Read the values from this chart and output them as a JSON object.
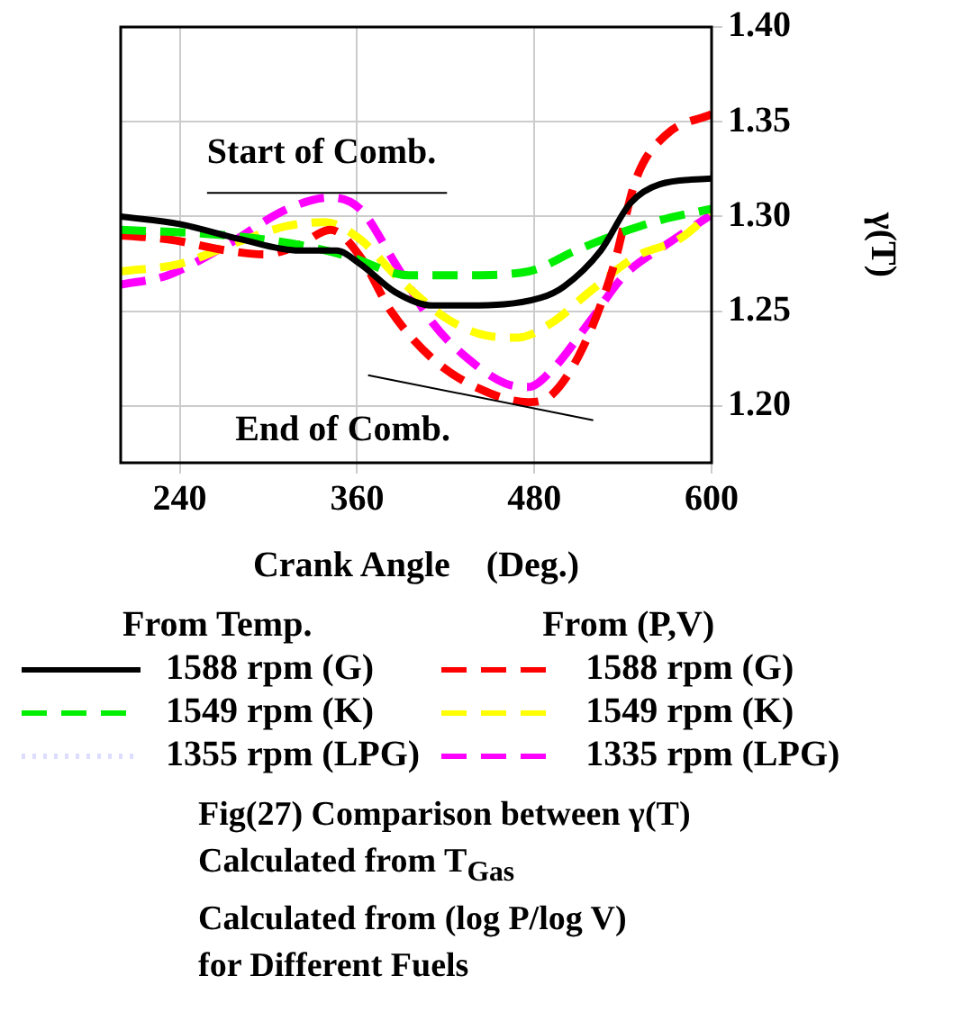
{
  "chart_data": {
    "type": "line",
    "title": "Fig(27) Comparison between γ(T)\nCalculated from T$_{Gas}$\nCalculated from (log P/log V)\nfor Different Fuels",
    "xlabel": "Crank Angle    (Deg.)",
    "ylabel": "γ(T)",
    "legend_title": "From Temp.",
    "xlim": [
      200,
      600
    ],
    "xticks": [
      240,
      360,
      480,
      600
    ],
    "ylim": [
      1.17,
      1.4
    ],
    "yticks": [
      {
        "value": 1.2,
        "label": "1.20"
      },
      {
        "value": 1.25,
        "label": "1.25"
      },
      {
        "value": 1.3,
        "label": "1.30"
      },
      {
        "value": 1.35,
        "label": "1.35"
      },
      {
        "value": 1.4,
        "label": "1.40"
      }
    ],
    "grid": true,
    "legend": "bottom",
    "marker": "none",
    "annotations": [
      "Start of Comb.",
      {
        "text": "End of Comb.",
        "x": 476,
        "y": 1.202
      },
      "From (P,V)"
    ],
    "series": [
      {
        "name": "1588 rpm (G)",
        "color": "#000000",
        "line_style": "solid",
        "x": [
          200,
          240,
          281,
          321,
          346,
          362,
          386,
          411,
          435,
          484,
          500,
          525,
          545,
          565,
          600
        ],
        "values": [
          1.3,
          1.296,
          1.288,
          1.282,
          1.282,
          1.275,
          1.26,
          1.253,
          1.253,
          1.257,
          1.263,
          1.282,
          1.307,
          1.317,
          1.32
        ]
      },
      {
        "name": "1549 rpm (K)",
        "color": "#00ee00",
        "line_style": "dashed",
        "x": [
          200,
          272,
          321,
          354,
          395,
          435,
          476,
          508,
          537,
          565,
          600
        ],
        "values": [
          1.293,
          1.29,
          1.285,
          1.279,
          1.269,
          1.269,
          1.271,
          1.282,
          1.291,
          1.298,
          1.304
        ]
      },
      {
        "name": "1355 rpm (LPG)",
        "color": "#ddddff",
        "line_style": "dotted"
      },
      {
        "name": "1588 rpm (G)",
        "color": "#ff0000",
        "line_style": "dashed",
        "x": [
          200,
          232,
          272,
          297,
          321,
          342,
          362,
          383,
          411,
          443,
          476,
          492,
          513,
          533,
          549,
          569,
          600
        ],
        "values": [
          1.29,
          1.288,
          1.282,
          1.28,
          1.285,
          1.293,
          1.279,
          1.25,
          1.225,
          1.209,
          1.202,
          1.206,
          1.231,
          1.272,
          1.32,
          1.343,
          1.354
        ]
      },
      {
        "name": "1549 rpm (K)",
        "color": "#ffff00",
        "line_style": "dashed",
        "x": [
          200,
          240,
          281,
          313,
          338,
          362,
          386,
          419,
          443,
          468,
          492,
          517,
          549,
          578,
          600
        ],
        "values": [
          1.271,
          1.275,
          1.287,
          1.295,
          1.297,
          1.288,
          1.269,
          1.247,
          1.238,
          1.236,
          1.244,
          1.26,
          1.279,
          1.288,
          1.302
        ]
      },
      {
        "name": "1335 rpm (LPG)",
        "color": "#ff00ff",
        "line_style": "dashed",
        "x": [
          200,
          232,
          272,
          313,
          342,
          362,
          386,
          411,
          435,
          460,
          476,
          492,
          517,
          541,
          569,
          600
        ],
        "values": [
          1.264,
          1.269,
          1.285,
          1.304,
          1.31,
          1.304,
          1.275,
          1.244,
          1.225,
          1.212,
          1.21,
          1.219,
          1.244,
          1.269,
          1.285,
          1.301
        ]
      }
    ]
  }
}
